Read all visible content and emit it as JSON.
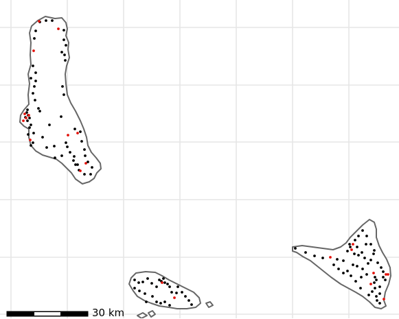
{
  "map": {
    "background_color": "#ffffff",
    "grid_color": "#e6e6e6",
    "coastline_color": "#666666",
    "land_fill": "#ffffff",
    "settlement_color": "#000000",
    "highlight_color": "#e3120b"
  },
  "scale_bar": {
    "label": "30 km"
  }
}
